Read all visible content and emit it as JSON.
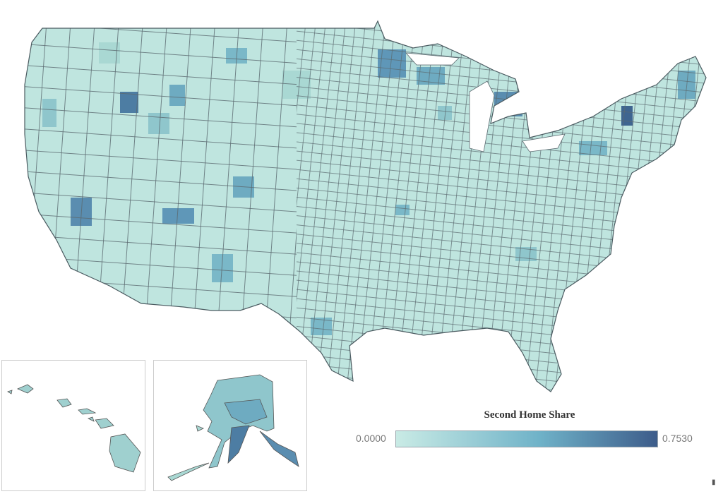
{
  "legend": {
    "title": "Second Home Share",
    "min_label": "0.0000",
    "max_label": "0.7530",
    "min_value": 0.0,
    "max_value": 0.753,
    "colors": {
      "low": "#c9ebe5",
      "mid": "#6fb2c8",
      "high": "#3d5c8a"
    }
  },
  "map": {
    "region": "United States counties",
    "insets": [
      "Hawaii",
      "Alaska"
    ],
    "border_color": "#555555",
    "background": "#ffffff"
  }
}
